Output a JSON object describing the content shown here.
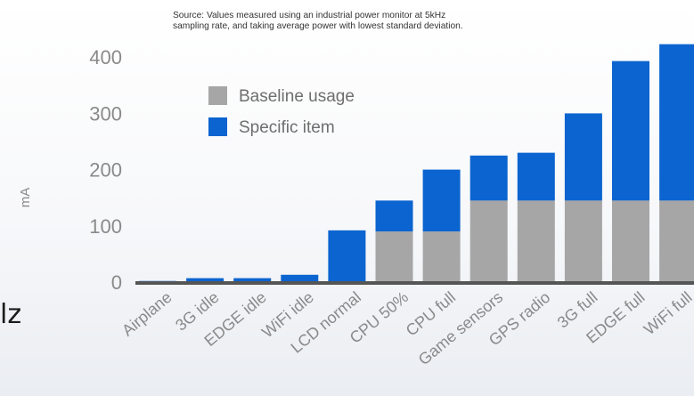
{
  "note": "Source: Values measured using an industrial power monitor at 5kHz sampling rate, and taking average power with lowest standard deviation.",
  "side_glyph": "lz",
  "colors": {
    "baseline": "#a6a6a6",
    "specific": "#0b64cf",
    "axis_text": "#8a8a8a",
    "baseline_line": "#555555"
  },
  "chart_data": {
    "type": "bar",
    "stacked": true,
    "ylabel": "mA",
    "xlabel": "",
    "ylim": [
      0,
      420
    ],
    "yticks": [
      0,
      100,
      200,
      300,
      400
    ],
    "grid": false,
    "legend_position": "top-left",
    "categories": [
      "Airplane",
      "3G idle",
      "EDGE idle",
      "WiFi idle",
      "LCD normal",
      "CPU 50%",
      "CPU full",
      "Game sensors",
      "GPS radio",
      "3G full",
      "EDGE full",
      "WiFi full"
    ],
    "series": [
      {
        "name": "Baseline usage",
        "color": "#a6a6a6",
        "values": [
          0,
          0,
          0,
          0,
          0,
          90,
          90,
          145,
          145,
          145,
          145,
          145
        ]
      },
      {
        "name": "Specific item",
        "color": "#0b64cf",
        "values": [
          2,
          7,
          7,
          13,
          92,
          55,
          110,
          80,
          85,
          155,
          248,
          278
        ]
      }
    ]
  }
}
